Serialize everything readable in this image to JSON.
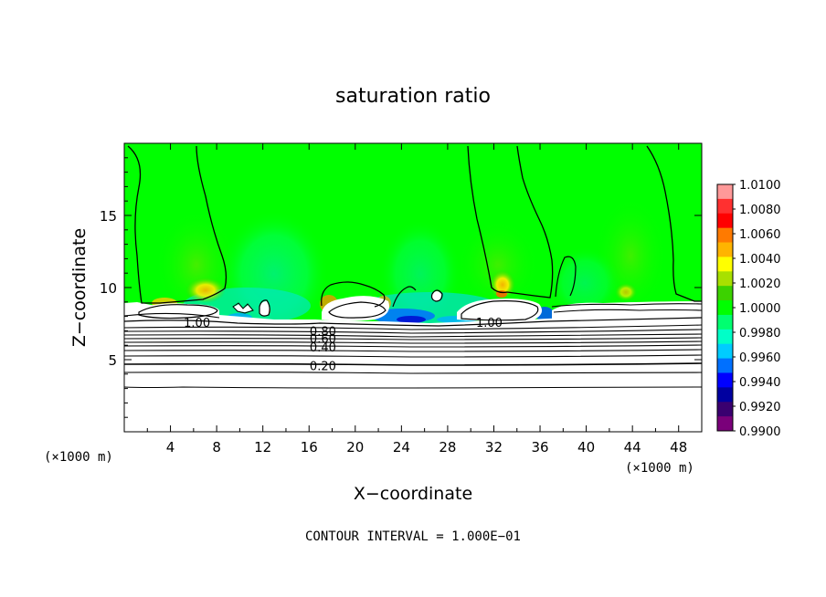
{
  "chart_data": {
    "type": "heatmap",
    "title": "saturation ratio",
    "xlabel": "X−coordinate",
    "ylabel": "Z−coordinate",
    "x_unit_left": "(×1000 m)",
    "x_unit_right": "(×1000 m)",
    "xlim": [
      0,
      50
    ],
    "ylim": [
      0,
      20
    ],
    "x_ticks": [
      4,
      8,
      12,
      16,
      20,
      24,
      28,
      32,
      36,
      40,
      44,
      48
    ],
    "x_tick_labels": [
      "4",
      "8",
      "12",
      "16",
      "20",
      "24",
      "28",
      "32",
      "36",
      "40",
      "44",
      "48"
    ],
    "y_ticks": [
      5,
      10,
      15
    ],
    "y_tick_labels": [
      "5",
      "10",
      "15"
    ],
    "footer": "CONTOUR INTERVAL = 1.000E−01",
    "colorbar": {
      "min": 0.99,
      "max": 1.01,
      "tick_labels": [
        "1.0100",
        "1.0080",
        "1.0060",
        "1.0040",
        "1.0020",
        "1.0000",
        "0.9980",
        "0.9960",
        "0.9940",
        "0.9920",
        "0.9900"
      ],
      "colors": [
        "#ff9999",
        "#ff3030",
        "#ff0000",
        "#ff7a00",
        "#ffb400",
        "#ffff00",
        "#a8e000",
        "#3cd200",
        "#00ff00",
        "#00ff70",
        "#00ffc8",
        "#00ccff",
        "#0070ff",
        "#0000ff",
        "#0000a0",
        "#3a0070",
        "#7a007a"
      ]
    },
    "contour_labels": [
      {
        "text": "1.00",
        "x": 6.3,
        "z": 7.6
      },
      {
        "text": "0.80",
        "x": 17.2,
        "z": 7.0
      },
      {
        "text": "0.60",
        "x": 17.2,
        "z": 6.5
      },
      {
        "text": "0.40",
        "x": 17.2,
        "z": 5.9
      },
      {
        "text": "0.20",
        "x": 17.2,
        "z": 4.6
      },
      {
        "text": "1.00",
        "x": 31.6,
        "z": 7.6
      }
    ]
  }
}
